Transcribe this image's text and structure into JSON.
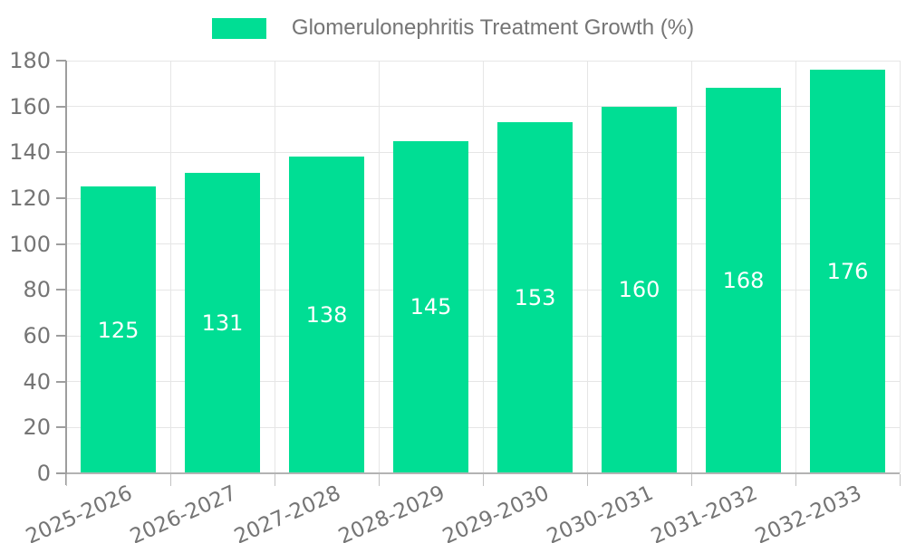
{
  "legend": {
    "label": "Glomerulonephritis Treatment Growth (%)"
  },
  "chart_data": {
    "type": "bar",
    "title": "Glomerulonephritis Treatment Growth (%)",
    "categories": [
      "2025-2026",
      "2026-2027",
      "2027-2028",
      "2028-2029",
      "2029-2030",
      "2030-2031",
      "2031-2032",
      "2032-2033"
    ],
    "values": [
      125,
      131,
      138,
      145,
      153,
      160,
      168,
      176
    ],
    "xlabel": "",
    "ylabel": "",
    "ylim": [
      0,
      180
    ],
    "ytick_step": 20,
    "ytick_labels": [
      "0",
      "20",
      "40",
      "60",
      "80",
      "100",
      "120",
      "140",
      "160",
      "180"
    ],
    "grid": true,
    "legend_position": "top",
    "value_labels": "inside-center",
    "colors": {
      "bar": "#00DE94",
      "value_label": "#ffffff",
      "axis_text": "#757575",
      "gridline": "#e6e6e6",
      "axis_line": "#9e9e9e",
      "background": "#ffffff"
    }
  }
}
